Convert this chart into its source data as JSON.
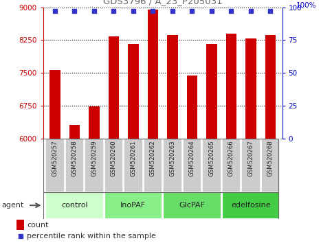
{
  "title": "GDS3796 / A_23_P205031",
  "samples": [
    "GSM520257",
    "GSM520258",
    "GSM520259",
    "GSM520260",
    "GSM520261",
    "GSM520262",
    "GSM520263",
    "GSM520264",
    "GSM520265",
    "GSM520266",
    "GSM520267",
    "GSM520268"
  ],
  "counts": [
    7570,
    6310,
    6740,
    8340,
    8170,
    8940,
    8360,
    7440,
    8170,
    8390,
    8280,
    8360
  ],
  "percentile": [
    97,
    97,
    97,
    97,
    97,
    97,
    97,
    97,
    97,
    97,
    97,
    97
  ],
  "bar_color": "#cc0000",
  "dot_color": "#3333cc",
  "ylim_left": [
    6000,
    9000
  ],
  "ylim_right": [
    0,
    100
  ],
  "yticks_left": [
    6000,
    6750,
    7500,
    8250,
    9000
  ],
  "yticks_right": [
    0,
    25,
    50,
    75,
    100
  ],
  "groups": [
    {
      "label": "control",
      "start": 0,
      "end": 3,
      "color": "#ccffcc"
    },
    {
      "label": "InoPAF",
      "start": 3,
      "end": 6,
      "color": "#88ee88"
    },
    {
      "label": "GlcPAF",
      "start": 6,
      "end": 9,
      "color": "#66dd66"
    },
    {
      "label": "edelfosine",
      "start": 9,
      "end": 12,
      "color": "#44cc44"
    }
  ],
  "xlabel_agent": "agent",
  "legend_count_label": "count",
  "legend_pct_label": "percentile rank within the sample",
  "bg_color_fig": "#ffffff",
  "grid_color": "#000000",
  "title_color": "#666666",
  "left_axis_color": "#cc0000",
  "right_axis_color": "#0000cc",
  "sample_box_color": "#cccccc",
  "right_axis_label": "100%"
}
